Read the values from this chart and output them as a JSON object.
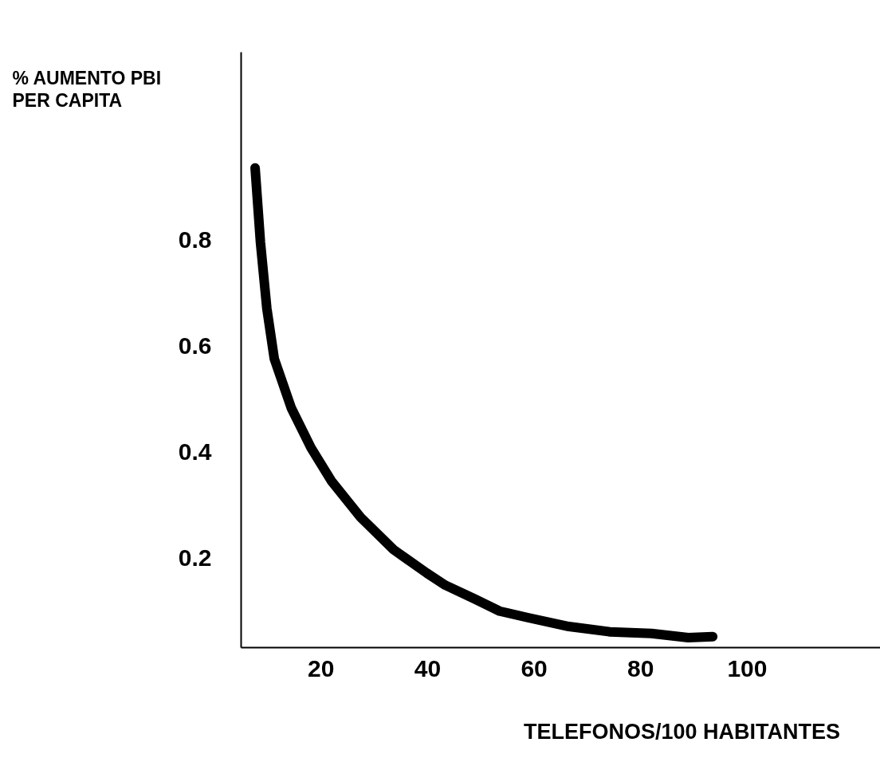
{
  "chart_data": {
    "type": "line",
    "xlabel": "TELEFONOS/100 HABITANTES",
    "ylabel": "% AUMENTO PBI\nPER CAPITA",
    "x": [
      7.7,
      8.7,
      9.9,
      11.3,
      14.5,
      18.2,
      22,
      27.5,
      33.7,
      39.9,
      43.4,
      48.7,
      53.6,
      58.8,
      66.6,
      74.3,
      82.1,
      89,
      93.6
    ],
    "series": [
      {
        "color": "#000000",
        "values": [
          0.937,
          0.797,
          0.672,
          0.577,
          0.484,
          0.409,
          0.347,
          0.278,
          0.217,
          0.173,
          0.15,
          0.125,
          0.101,
          0.089,
          0.072,
          0.062,
          0.059,
          0.051,
          0.053
        ]
      }
    ],
    "xlim": [
      5,
      125
    ],
    "xticks": [
      20,
      40,
      60,
      80,
      100
    ],
    "ylim": [
      0.033,
      1.156
    ],
    "yticks": [
      0.2,
      0.4,
      0.6,
      0.8
    ],
    "grid": false,
    "marker": "none",
    "line_style": "solid"
  }
}
